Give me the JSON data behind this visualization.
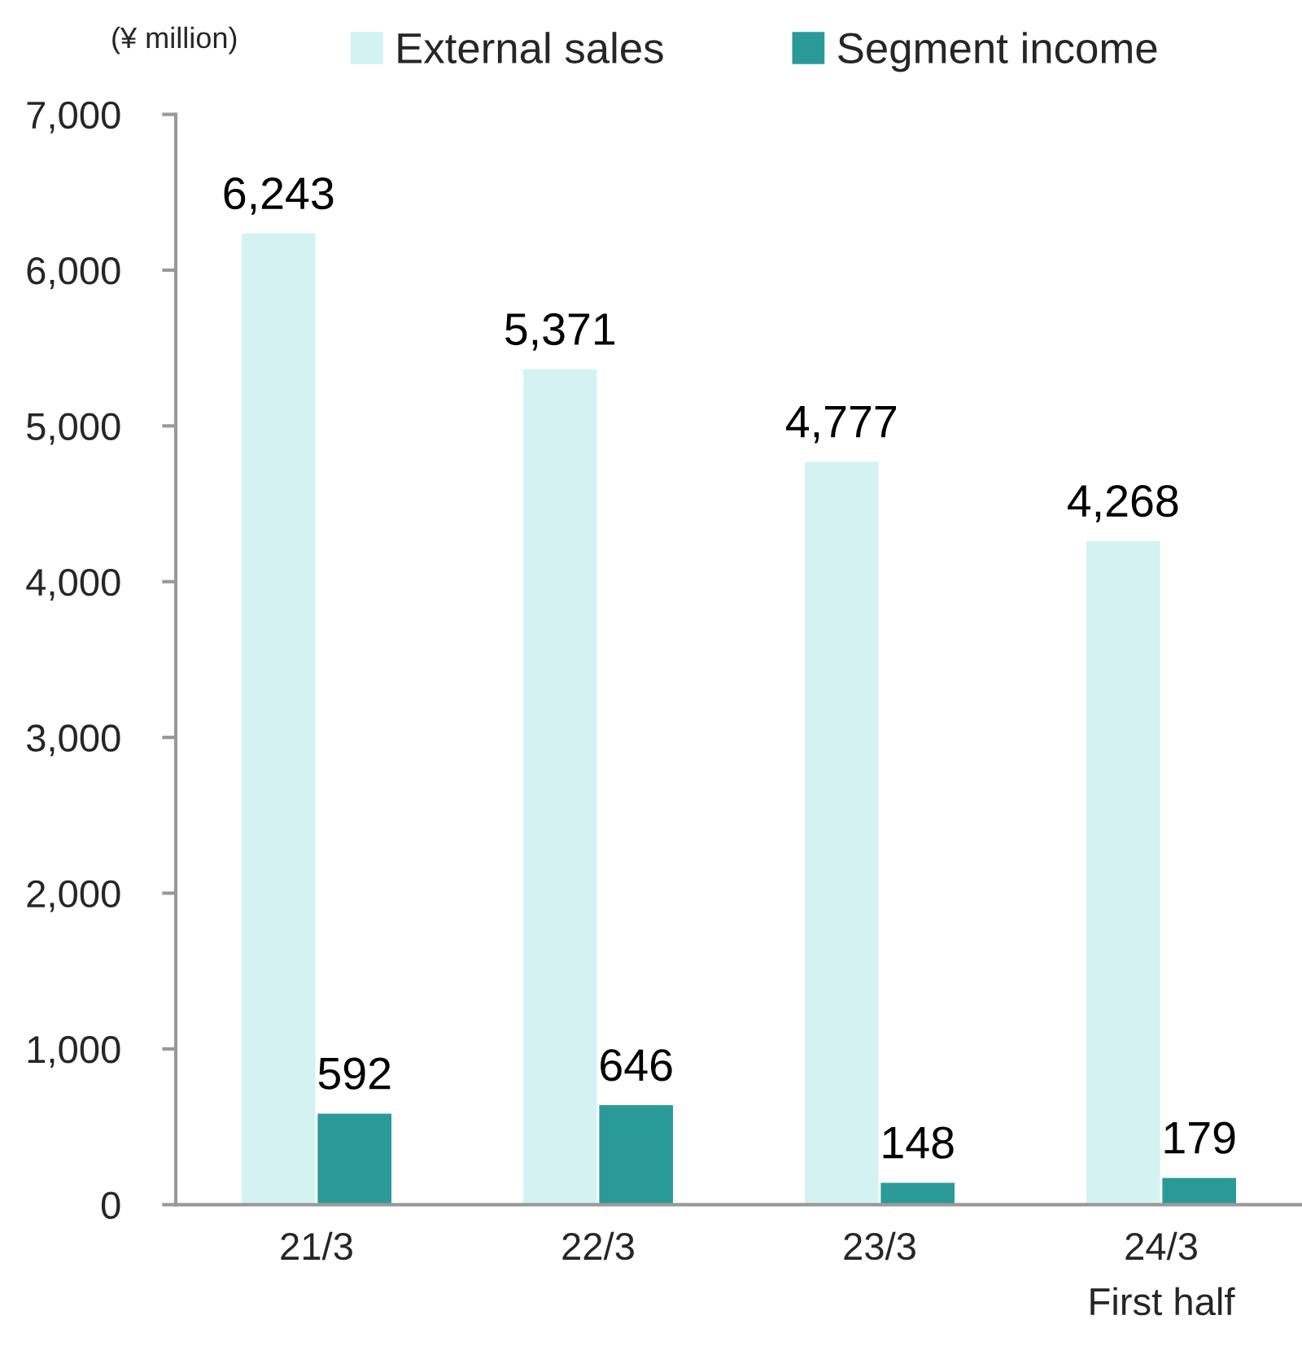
{
  "chart_data": {
    "type": "bar",
    "ylabel": "(¥ million)",
    "categories": [
      "21/3",
      "22/3",
      "23/3",
      "24/3\nFirst half"
    ],
    "series": [
      {
        "name": "External sales",
        "color": "#d4f2f2",
        "values": [
          6243,
          5371,
          4777,
          4268
        ],
        "value_labels": [
          "6,243",
          "5,371",
          "4,777",
          "4,268"
        ]
      },
      {
        "name": "Segment income",
        "color": "#2a9a98",
        "values": [
          592,
          646,
          148,
          179
        ],
        "value_labels": [
          "592",
          "646",
          "148",
          "179"
        ]
      }
    ],
    "ylim": [
      0,
      7000
    ],
    "yticks": [
      0,
      {
        "value": 1000,
        "label": "1,000"
      },
      {
        "value": 2000,
        "label": "2,000"
      },
      {
        "value": 3000,
        "label": "3,000"
      },
      {
        "value": 4000,
        "label": "4,000"
      },
      {
        "value": 5000,
        "label": "5,000"
      },
      {
        "value": 6000,
        "label": "6,000"
      },
      {
        "value": 7000,
        "label": "7,000"
      }
    ],
    "legend": "top",
    "grid": false
  }
}
